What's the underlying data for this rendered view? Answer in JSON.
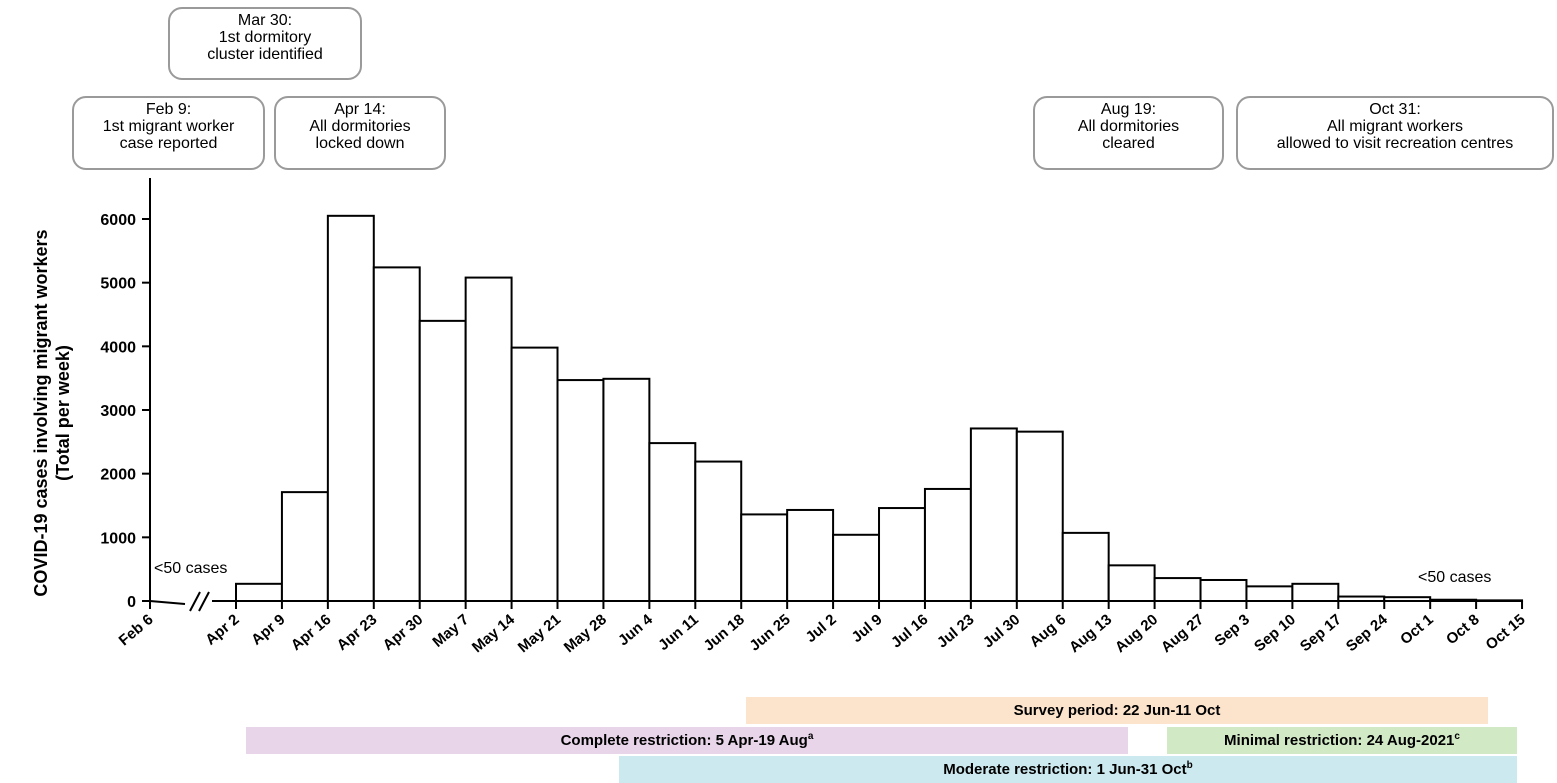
{
  "colors": {
    "survey": "#fbe3cc",
    "complete": "#e8d5ea",
    "minimal": "#d2e9c6",
    "moderate": "#cde9f0",
    "bar_fill": "#ffffff",
    "bar_stroke": "#000000",
    "callout_border": "#9a9a9a"
  },
  "callouts": [
    {
      "lines": [
        "Mar 30:",
        "1st dormitory",
        "cluster identified"
      ]
    },
    {
      "lines": [
        "Feb 9:",
        "1st migrant worker",
        "case reported"
      ]
    },
    {
      "lines": [
        "Apr 14:",
        "All dormitories",
        "locked down"
      ]
    },
    {
      "lines": [
        "Aug 19:",
        "All dormitories",
        "cleared"
      ]
    },
    {
      "lines": [
        "Oct 31:",
        "All migrant workers",
        "allowed to visit recreation centres"
      ]
    }
  ],
  "chart_data": {
    "type": "bar",
    "xlabel": "",
    "ylabel": "COVID-19 cases involving migrant workers",
    "ylabel_sub": "(Total per week)",
    "ylim": [
      0,
      6500
    ],
    "yticks": [
      0,
      1000,
      2000,
      3000,
      4000,
      5000,
      6000
    ],
    "axis_break_between": [
      "Feb 6",
      "Apr 2"
    ],
    "categories": [
      "Feb 6",
      "Apr 2",
      "Apr 9",
      "Apr 16",
      "Apr 23",
      "Apr 30",
      "May 7",
      "May 14",
      "May 21",
      "May 28",
      "Jun 4",
      "Jun 11",
      "Jun 18",
      "Jun 25",
      "Jul 2",
      "Jul 9",
      "Jul 16",
      "Jul 23",
      "Jul 30",
      "Aug 6",
      "Aug 13",
      "Aug 20",
      "Aug 27",
      "Sep 3",
      "Sep 10",
      "Sep 17",
      "Sep 24",
      "Oct 1",
      "Oct 8",
      "Oct 15"
    ],
    "bars": [
      {
        "start": "Apr 2",
        "value": 270
      },
      {
        "start": "Apr 9",
        "value": 1710
      },
      {
        "start": "Apr 16",
        "value": 6050
      },
      {
        "start": "Apr 23",
        "value": 5240
      },
      {
        "start": "Apr 30",
        "value": 4400
      },
      {
        "start": "May 7",
        "value": 5080
      },
      {
        "start": "May 14",
        "value": 3980
      },
      {
        "start": "May 21",
        "value": 3470
      },
      {
        "start": "May 28",
        "value": 3490
      },
      {
        "start": "Jun 4",
        "value": 2480
      },
      {
        "start": "Jun 11",
        "value": 2190
      },
      {
        "start": "Jun 18",
        "value": 1360
      },
      {
        "start": "Jun 25",
        "value": 1430
      },
      {
        "start": "Jul 2",
        "value": 1040
      },
      {
        "start": "Jul 9",
        "value": 1460
      },
      {
        "start": "Jul 16",
        "value": 1760
      },
      {
        "start": "Jul 23",
        "value": 2710
      },
      {
        "start": "Jul 30",
        "value": 2660
      },
      {
        "start": "Aug 6",
        "value": 1070
      },
      {
        "start": "Aug 13",
        "value": 560
      },
      {
        "start": "Aug 20",
        "value": 360
      },
      {
        "start": "Aug 27",
        "value": 330
      },
      {
        "start": "Sep 3",
        "value": 230
      },
      {
        "start": "Sep 10",
        "value": 270
      },
      {
        "start": "Sep 17",
        "value": 70
      },
      {
        "start": "Sep 24",
        "value": 60
      },
      {
        "start": "Oct 1",
        "value": 20
      },
      {
        "start": "Oct 8",
        "value": 10
      }
    ],
    "annotations": [
      {
        "text": "<50 cases",
        "near": "Feb 6"
      },
      {
        "text": "<50 cases",
        "near": "Oct 8"
      }
    ]
  },
  "periods": {
    "survey": {
      "label": "Survey period: 22 Jun-11 Oct",
      "sup": ""
    },
    "complete": {
      "label": "Complete restriction: 5 Apr-19 Aug",
      "sup": "a"
    },
    "minimal": {
      "label": "Minimal restriction: 24 Aug-2021",
      "sup": "c"
    },
    "moderate": {
      "label": "Moderate restriction: 1 Jun-31 Oct",
      "sup": "b"
    }
  }
}
